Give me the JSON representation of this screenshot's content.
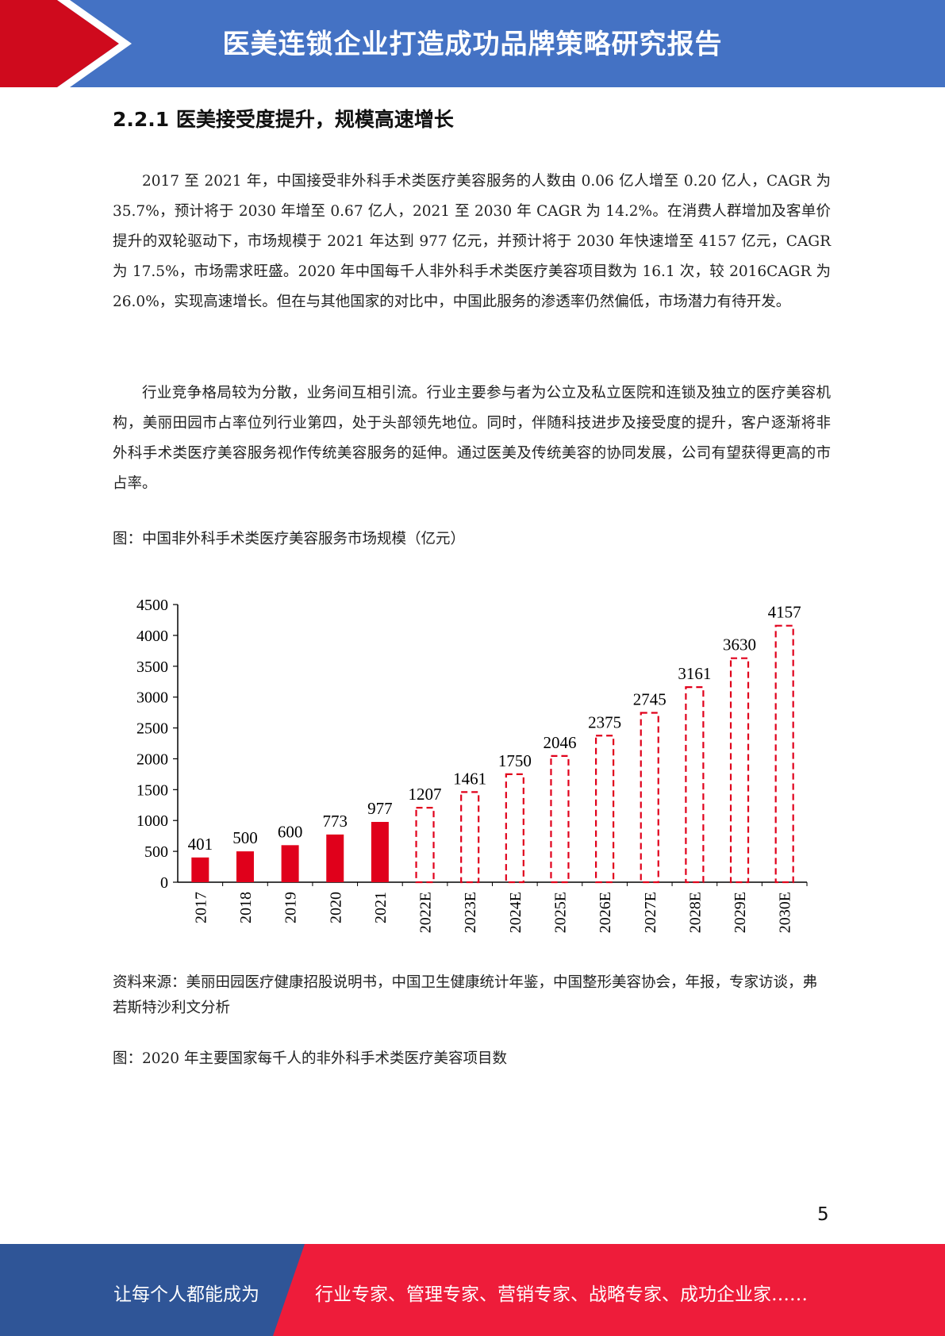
{
  "header": {
    "title": "医美连锁企业打造成功品牌策略研究报告"
  },
  "section": {
    "title": "2.2.1 医美接受度提升，规模高速增长"
  },
  "paragraphs": [
    "2017 至 2021 年，中国接受非外科手术类医疗美容服务的人数由 0.06 亿人增至 0.20 亿人，CAGR 为 35.7%，预计将于 2030 年增至 0.67 亿人，2021 至 2030 年 CAGR 为 14.2%。在消费人群增加及客单价提升的双轮驱动下，市场规模于 2021 年达到 977 亿元，并预计将于 2030 年快速增至 4157 亿元，CAGR 为 17.5%，市场需求旺盛。2020 年中国每千人非外科手术类医疗美容项目数为 16.1 次，较 2016CAGR 为 26.0%，实现高速增长。但在与其他国家的对比中，中国此服务的渗透率仍然偏低，市场潜力有待开发。",
    "行业竞争格局较为分散，业务间互相引流。行业主要参与者为公立及私立医院和连锁及独立的医疗美容机构，美丽田园市占率位列行业第四，处于头部领先地位。同时，伴随科技进步及接受度的提升，客户逐渐将非外科手术类医疗美容服务视作传统美容服务的延伸。通过医美及传统美容的协同发展，公司有望获得更高的市占率。"
  ],
  "figure1_caption": "图：中国非外科手术类医疗美容服务市场规模（亿元）",
  "source": "资料来源：美丽田园医疗健康招股说明书，中国卫生健康统计年鉴，中国整形美容协会，年报，专家访谈，弗若斯特沙利文分析",
  "figure2_caption": "图：2020 年主要国家每千人的非外科手术类医疗美容项目数",
  "page_number": "5",
  "footer": {
    "left": "让每个人都能成为",
    "right": "行业专家、管理专家、营销专家、战略专家、成功企业家……"
  },
  "colors": {
    "header_blue": "#4472c4",
    "accent_red": "#d0021b",
    "footer_blue": "#2f5597",
    "footer_red": "#ee1c3a",
    "bar_red": "#e0001b"
  },
  "chart_data": {
    "type": "bar",
    "categories": [
      "2017",
      "2018",
      "2019",
      "2020",
      "2021",
      "2022E",
      "2023E",
      "2024E",
      "2025E",
      "2026E",
      "2027E",
      "2028E",
      "2029E",
      "2030E"
    ],
    "values": [
      401,
      500,
      600,
      773,
      977,
      1207,
      1461,
      1750,
      2046,
      2375,
      2745,
      3161,
      3630,
      4157
    ],
    "estimated": [
      false,
      false,
      false,
      false,
      false,
      true,
      true,
      true,
      true,
      true,
      true,
      true,
      true,
      true
    ],
    "yticks": [
      0,
      500,
      1000,
      1500,
      2000,
      2500,
      3000,
      3500,
      4000,
      4500
    ],
    "ylim": [
      0,
      4500
    ],
    "grid": false,
    "legend": "none",
    "title": "",
    "xlabel": "",
    "ylabel": ""
  }
}
